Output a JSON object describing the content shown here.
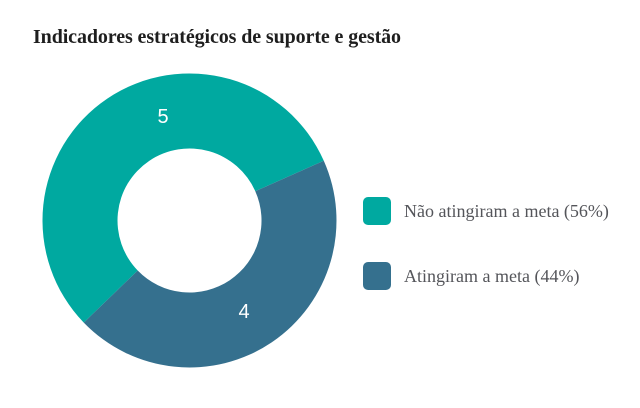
{
  "title": "Indicadores estratégicos de suporte e gestão",
  "background_color": "#ffffff",
  "chart_data": {
    "type": "pie",
    "subtype": "donut",
    "title": "Indicadores estratégicos de suporte e gestão",
    "labels": [
      "Não atingiram a meta",
      "Atingiram a meta"
    ],
    "values": [
      5,
      4
    ],
    "percent_labels": [
      "56%",
      "44%"
    ],
    "data_labels": [
      "5",
      "4"
    ],
    "colors": [
      "#00a9a0",
      "#35708e"
    ],
    "data_label_color": "#ffffff",
    "hole_ratio": 0.49,
    "start_angle_deg_cw_from_top": 226,
    "direction": "clockwise",
    "legend_position": "right",
    "legend": {
      "items": [
        {
          "label": "Não atingiram a meta (56%)",
          "color": "#00a9a0"
        },
        {
          "label": "Atingiram a meta (44%)",
          "color": "#35708e"
        }
      ]
    }
  },
  "text_colors": {
    "title": "#1e1e1e",
    "legend": "#54555a"
  }
}
